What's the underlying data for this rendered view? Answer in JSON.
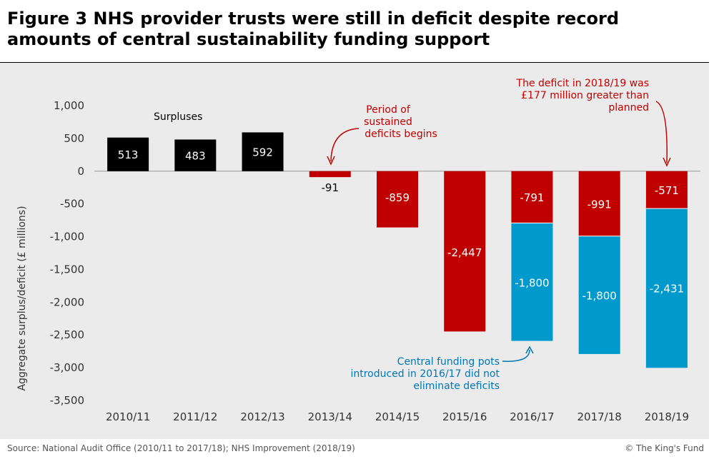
{
  "title": "Figure 3 NHS provider trusts were still in deficit despite record amounts of central sustainability funding support",
  "footer": {
    "source": "Source: National Audit Office (2010/11  to 2017/18);  NHS Improvement  (2018/19)",
    "copyright": "© The King's  Fund"
  },
  "colors": {
    "surplus": "#000000",
    "deficit": "#c00000",
    "funding": "#0099cc",
    "annotation_red": "#c00000",
    "annotation_blue": "#0077b6",
    "background": "#ebebeb"
  },
  "chart_data": {
    "type": "bar",
    "stacked": true,
    "title": "Figure 3 NHS provider trusts were still in deficit despite record amounts of central sustainability funding support",
    "xlabel": "",
    "ylabel": "Aggregate surplus/deficit (£ millions)",
    "ylim": [
      -3500,
      1000
    ],
    "yticks": [
      1000,
      500,
      0,
      -500,
      -1000,
      -1500,
      -2000,
      -2500,
      -3000,
      -3500
    ],
    "ytick_labels": [
      "1,000",
      "500",
      "0",
      "-500",
      "-1,000",
      "-1,500",
      "-2,000",
      "-2,500",
      "-3,000",
      "-3,500"
    ],
    "categories": [
      "2010/11",
      "2011/12",
      "2012/13",
      "2013/14",
      "2014/15",
      "2015/16",
      "2016/17",
      "2017/18",
      "2018/19"
    ],
    "series": [
      {
        "name": "Surplus / deficit",
        "values": [
          513,
          483,
          592,
          -91,
          -859,
          -2447,
          -791,
          -991,
          -571
        ],
        "labels": [
          "513",
          "483",
          "592",
          "-91",
          "-859",
          "-2,447",
          "-791",
          "-991",
          "-571"
        ]
      },
      {
        "name": "Central funding",
        "values": [
          0,
          0,
          0,
          0,
          0,
          0,
          -1800,
          -1800,
          -2431
        ],
        "labels": [
          "",
          "",
          "",
          "",
          "",
          "",
          "-1,800",
          "-1,800",
          "-2,431"
        ]
      }
    ],
    "annotations": {
      "surpluses": "Surpluses",
      "period": [
        "Period of",
        "sustained",
        "deficits begins"
      ],
      "deficit_2018": [
        "The deficit in 2018/19 was",
        "£177 million  greater than",
        "planned"
      ],
      "funding_pots": [
        "Central funding pots",
        "introduced in  2016/17 did not",
        "eliminate deficits"
      ]
    }
  }
}
